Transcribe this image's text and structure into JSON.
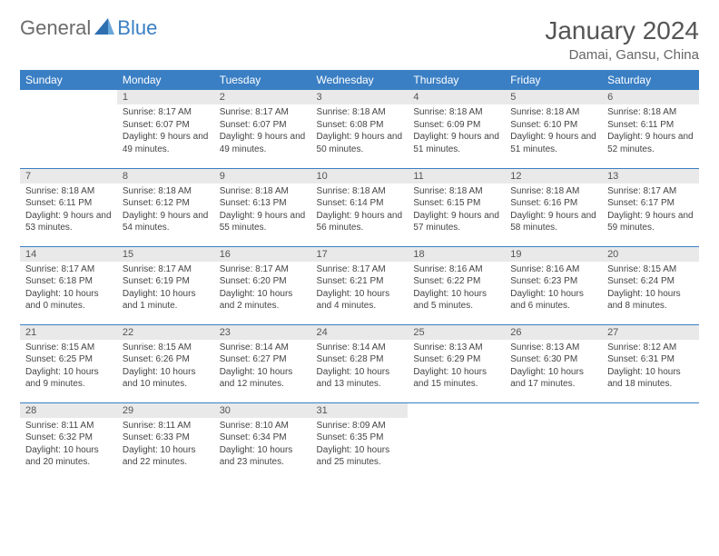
{
  "brand": {
    "part1": "General",
    "part2": "Blue"
  },
  "title": "January 2024",
  "location": "Damai, Gansu, China",
  "colors": {
    "header_bg": "#3a7fc4",
    "header_text": "#ffffff",
    "daynum_bg": "#e9e9e9",
    "row_border": "#3a7fc4",
    "body_text": "#444444",
    "title_text": "#555555",
    "brand_gray": "#6b6b6b",
    "brand_blue": "#3a7fc4"
  },
  "weekdays": [
    "Sunday",
    "Monday",
    "Tuesday",
    "Wednesday",
    "Thursday",
    "Friday",
    "Saturday"
  ],
  "weeks": [
    [
      {
        "n": "",
        "sr": "",
        "ss": "",
        "dl": ""
      },
      {
        "n": "1",
        "sr": "Sunrise: 8:17 AM",
        "ss": "Sunset: 6:07 PM",
        "dl": "Daylight: 9 hours and 49 minutes."
      },
      {
        "n": "2",
        "sr": "Sunrise: 8:17 AM",
        "ss": "Sunset: 6:07 PM",
        "dl": "Daylight: 9 hours and 49 minutes."
      },
      {
        "n": "3",
        "sr": "Sunrise: 8:18 AM",
        "ss": "Sunset: 6:08 PM",
        "dl": "Daylight: 9 hours and 50 minutes."
      },
      {
        "n": "4",
        "sr": "Sunrise: 8:18 AM",
        "ss": "Sunset: 6:09 PM",
        "dl": "Daylight: 9 hours and 51 minutes."
      },
      {
        "n": "5",
        "sr": "Sunrise: 8:18 AM",
        "ss": "Sunset: 6:10 PM",
        "dl": "Daylight: 9 hours and 51 minutes."
      },
      {
        "n": "6",
        "sr": "Sunrise: 8:18 AM",
        "ss": "Sunset: 6:11 PM",
        "dl": "Daylight: 9 hours and 52 minutes."
      }
    ],
    [
      {
        "n": "7",
        "sr": "Sunrise: 8:18 AM",
        "ss": "Sunset: 6:11 PM",
        "dl": "Daylight: 9 hours and 53 minutes."
      },
      {
        "n": "8",
        "sr": "Sunrise: 8:18 AM",
        "ss": "Sunset: 6:12 PM",
        "dl": "Daylight: 9 hours and 54 minutes."
      },
      {
        "n": "9",
        "sr": "Sunrise: 8:18 AM",
        "ss": "Sunset: 6:13 PM",
        "dl": "Daylight: 9 hours and 55 minutes."
      },
      {
        "n": "10",
        "sr": "Sunrise: 8:18 AM",
        "ss": "Sunset: 6:14 PM",
        "dl": "Daylight: 9 hours and 56 minutes."
      },
      {
        "n": "11",
        "sr": "Sunrise: 8:18 AM",
        "ss": "Sunset: 6:15 PM",
        "dl": "Daylight: 9 hours and 57 minutes."
      },
      {
        "n": "12",
        "sr": "Sunrise: 8:18 AM",
        "ss": "Sunset: 6:16 PM",
        "dl": "Daylight: 9 hours and 58 minutes."
      },
      {
        "n": "13",
        "sr": "Sunrise: 8:17 AM",
        "ss": "Sunset: 6:17 PM",
        "dl": "Daylight: 9 hours and 59 minutes."
      }
    ],
    [
      {
        "n": "14",
        "sr": "Sunrise: 8:17 AM",
        "ss": "Sunset: 6:18 PM",
        "dl": "Daylight: 10 hours and 0 minutes."
      },
      {
        "n": "15",
        "sr": "Sunrise: 8:17 AM",
        "ss": "Sunset: 6:19 PM",
        "dl": "Daylight: 10 hours and 1 minute."
      },
      {
        "n": "16",
        "sr": "Sunrise: 8:17 AM",
        "ss": "Sunset: 6:20 PM",
        "dl": "Daylight: 10 hours and 2 minutes."
      },
      {
        "n": "17",
        "sr": "Sunrise: 8:17 AM",
        "ss": "Sunset: 6:21 PM",
        "dl": "Daylight: 10 hours and 4 minutes."
      },
      {
        "n": "18",
        "sr": "Sunrise: 8:16 AM",
        "ss": "Sunset: 6:22 PM",
        "dl": "Daylight: 10 hours and 5 minutes."
      },
      {
        "n": "19",
        "sr": "Sunrise: 8:16 AM",
        "ss": "Sunset: 6:23 PM",
        "dl": "Daylight: 10 hours and 6 minutes."
      },
      {
        "n": "20",
        "sr": "Sunrise: 8:15 AM",
        "ss": "Sunset: 6:24 PM",
        "dl": "Daylight: 10 hours and 8 minutes."
      }
    ],
    [
      {
        "n": "21",
        "sr": "Sunrise: 8:15 AM",
        "ss": "Sunset: 6:25 PM",
        "dl": "Daylight: 10 hours and 9 minutes."
      },
      {
        "n": "22",
        "sr": "Sunrise: 8:15 AM",
        "ss": "Sunset: 6:26 PM",
        "dl": "Daylight: 10 hours and 10 minutes."
      },
      {
        "n": "23",
        "sr": "Sunrise: 8:14 AM",
        "ss": "Sunset: 6:27 PM",
        "dl": "Daylight: 10 hours and 12 minutes."
      },
      {
        "n": "24",
        "sr": "Sunrise: 8:14 AM",
        "ss": "Sunset: 6:28 PM",
        "dl": "Daylight: 10 hours and 13 minutes."
      },
      {
        "n": "25",
        "sr": "Sunrise: 8:13 AM",
        "ss": "Sunset: 6:29 PM",
        "dl": "Daylight: 10 hours and 15 minutes."
      },
      {
        "n": "26",
        "sr": "Sunrise: 8:13 AM",
        "ss": "Sunset: 6:30 PM",
        "dl": "Daylight: 10 hours and 17 minutes."
      },
      {
        "n": "27",
        "sr": "Sunrise: 8:12 AM",
        "ss": "Sunset: 6:31 PM",
        "dl": "Daylight: 10 hours and 18 minutes."
      }
    ],
    [
      {
        "n": "28",
        "sr": "Sunrise: 8:11 AM",
        "ss": "Sunset: 6:32 PM",
        "dl": "Daylight: 10 hours and 20 minutes."
      },
      {
        "n": "29",
        "sr": "Sunrise: 8:11 AM",
        "ss": "Sunset: 6:33 PM",
        "dl": "Daylight: 10 hours and 22 minutes."
      },
      {
        "n": "30",
        "sr": "Sunrise: 8:10 AM",
        "ss": "Sunset: 6:34 PM",
        "dl": "Daylight: 10 hours and 23 minutes."
      },
      {
        "n": "31",
        "sr": "Sunrise: 8:09 AM",
        "ss": "Sunset: 6:35 PM",
        "dl": "Daylight: 10 hours and 25 minutes."
      },
      {
        "n": "",
        "sr": "",
        "ss": "",
        "dl": ""
      },
      {
        "n": "",
        "sr": "",
        "ss": "",
        "dl": ""
      },
      {
        "n": "",
        "sr": "",
        "ss": "",
        "dl": ""
      }
    ]
  ]
}
